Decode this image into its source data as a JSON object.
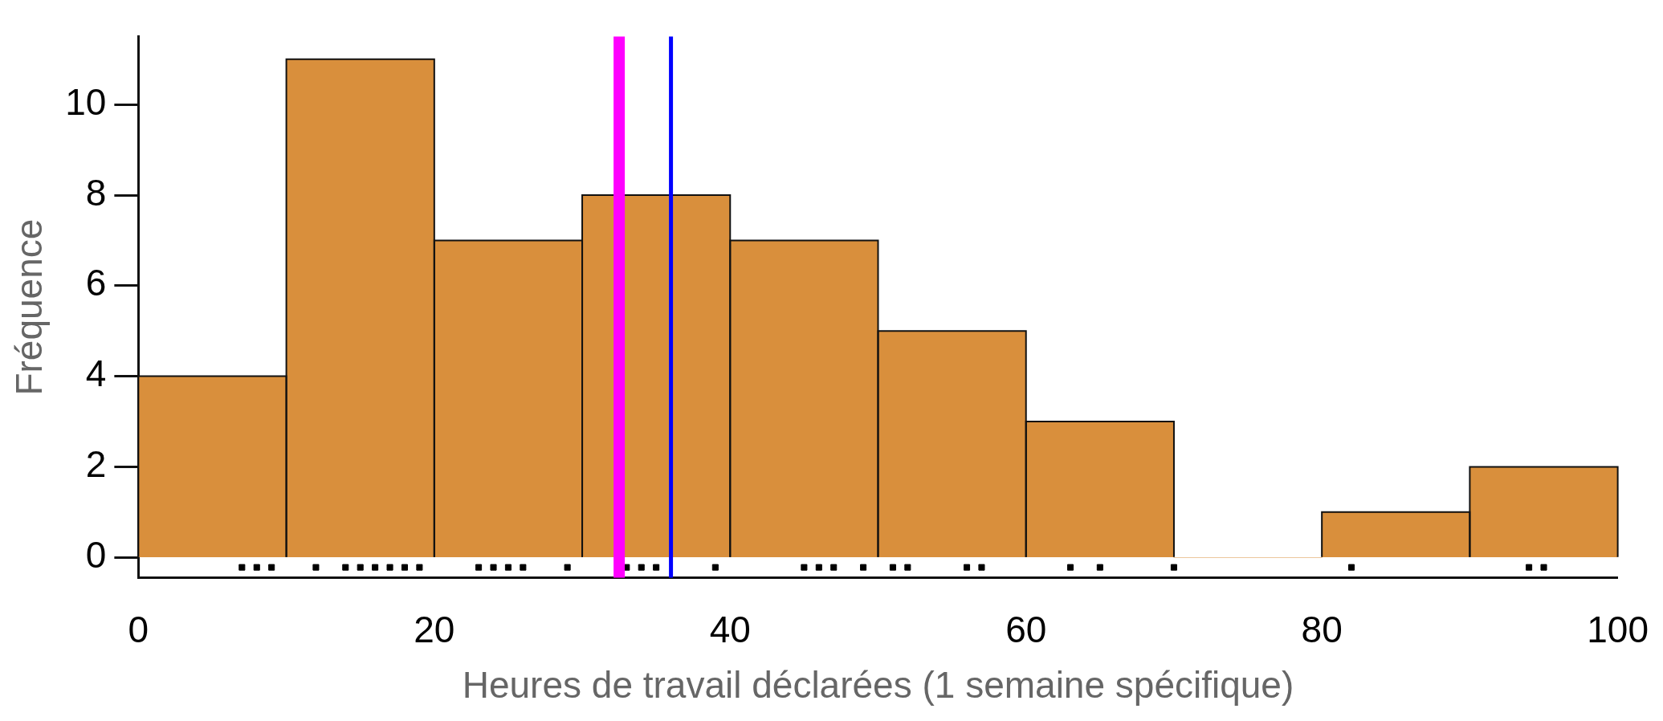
{
  "chart_data": {
    "type": "histogram",
    "xlabel": "Heures de travail déclarées (1 semaine spécifique)",
    "ylabel": "Fréquence",
    "bins": [
      0,
      10,
      20,
      30,
      40,
      50,
      60,
      70,
      80,
      90,
      100
    ],
    "values": [
      4,
      11,
      7,
      8,
      7,
      5,
      3,
      0,
      1,
      2
    ],
    "color": "#d98f3c",
    "series": [
      {
        "type": "scatter",
        "color": "#000000",
        "x": [
          7,
          8,
          9,
          12,
          14,
          15,
          16,
          17,
          18,
          19,
          23,
          24,
          25,
          26,
          29,
          33,
          34,
          35,
          39,
          45,
          46,
          47,
          49,
          51,
          52,
          56,
          57,
          63,
          65,
          70,
          82,
          94,
          95
        ],
        "values": [
          -0.22,
          -0.22,
          -0.22,
          -0.22,
          -0.22,
          -0.22,
          -0.22,
          -0.22,
          -0.22,
          -0.22,
          -0.22,
          -0.22,
          -0.22,
          -0.22,
          -0.22,
          -0.22,
          -0.22,
          -0.22,
          -0.22,
          -0.22,
          -0.22,
          -0.22,
          -0.22,
          -0.22,
          -0.22,
          -0.22,
          -0.22,
          -0.22,
          -0.22,
          -0.22,
          -0.22,
          -0.22,
          -0.22
        ]
      }
    ],
    "ref_lines": [
      {
        "axis": "x",
        "value": 32.5,
        "color": "#ff00ff"
      },
      {
        "axis": "x",
        "value": 36,
        "color": "#0000ff"
      }
    ],
    "xlim": [
      0,
      100
    ],
    "xticks": [
      0,
      20,
      40,
      60,
      80,
      100
    ],
    "ylim": [
      -0.45,
      11.5
    ],
    "yticks": [
      0,
      2,
      4,
      6,
      8,
      10
    ],
    "grid": false,
    "legend": false,
    "marker": "square"
  }
}
